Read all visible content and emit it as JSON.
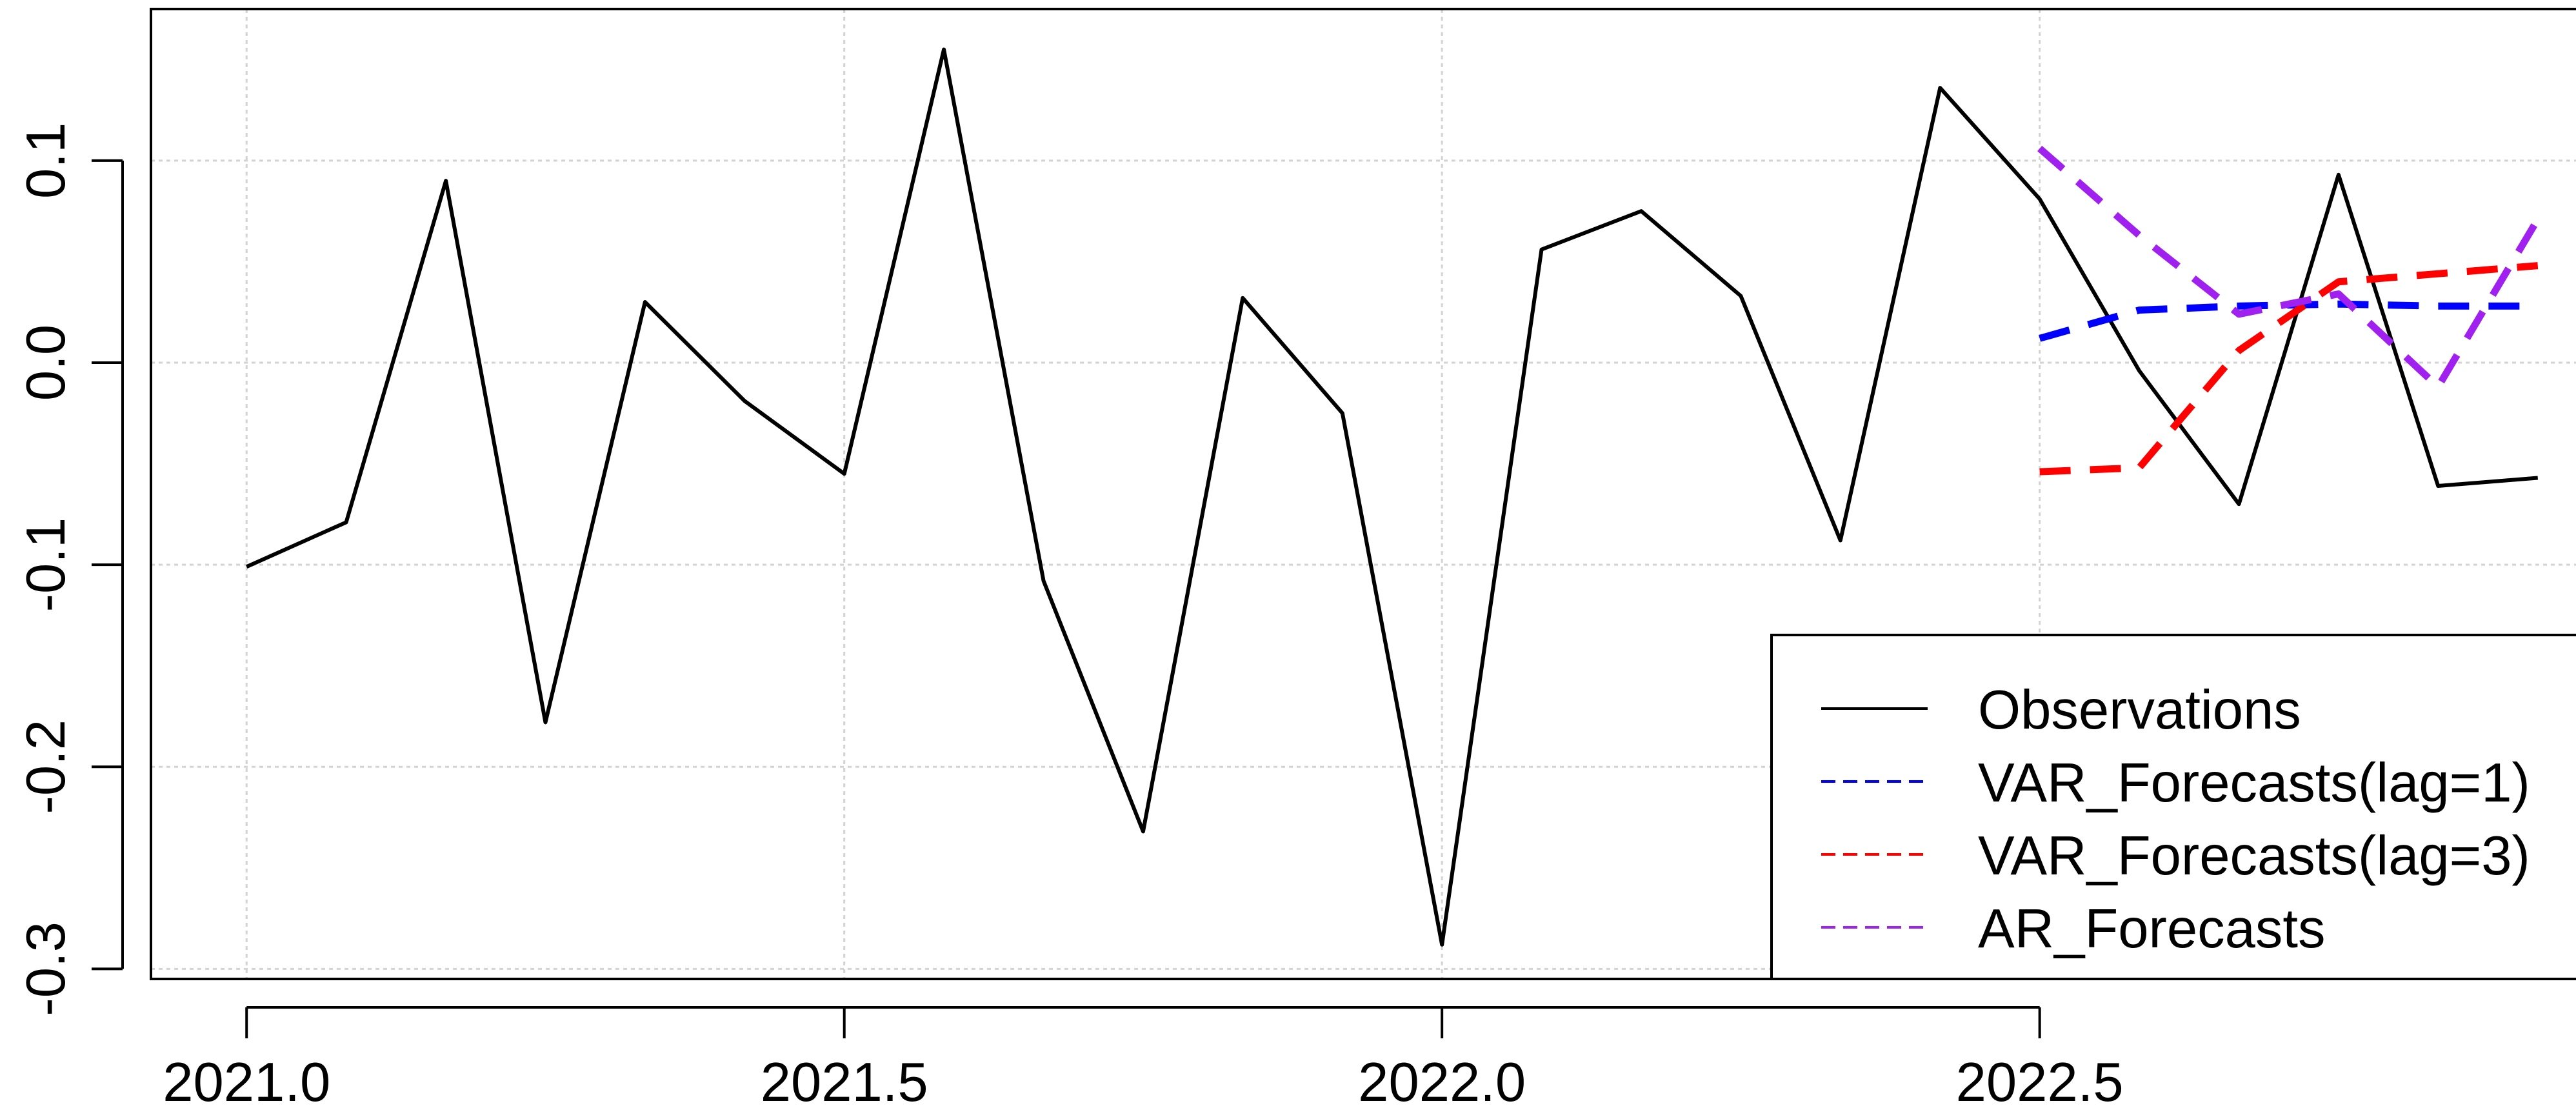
{
  "chart_data": {
    "type": "line",
    "title": "",
    "xlabel": "",
    "ylabel": "",
    "xlim": [
      2020.92,
      2022.96
    ],
    "ylim": [
      -0.305,
      0.175
    ],
    "x_ticks": [
      {
        "value": 2021.0,
        "label": "2021.0"
      },
      {
        "value": 2021.5,
        "label": "2021.5"
      },
      {
        "value": 2022.0,
        "label": "2022.0"
      },
      {
        "value": 2022.5,
        "label": "2022.5"
      }
    ],
    "y_ticks": [
      {
        "value": -0.3,
        "label": "-0.3"
      },
      {
        "value": -0.2,
        "label": "-0.2"
      },
      {
        "value": -0.1,
        "label": "-0.1"
      },
      {
        "value": 0.0,
        "label": "0.0"
      },
      {
        "value": 0.1,
        "label": "0.1"
      }
    ],
    "grid": true,
    "legend_position": "bottom-right",
    "series": [
      {
        "name": "Observations",
        "color": "#000000",
        "dash": "solid",
        "x": [
          2021.0,
          2021.0833,
          2021.1667,
          2021.25,
          2021.3333,
          2021.4167,
          2021.5,
          2021.5833,
          2021.6667,
          2021.75,
          2021.8333,
          2021.9167,
          2022.0,
          2022.0833,
          2022.1667,
          2022.25,
          2022.3333,
          2022.4167,
          2022.5,
          2022.5833,
          2022.6667,
          2022.75,
          2022.8333,
          2022.9167
        ],
        "y": [
          -0.101,
          -0.079,
          0.09,
          -0.178,
          0.03,
          -0.019,
          -0.055,
          0.155,
          -0.108,
          -0.232,
          0.032,
          -0.025,
          -0.288,
          0.056,
          0.075,
          0.033,
          -0.088,
          0.136,
          0.081,
          -0.004,
          -0.07,
          0.093,
          -0.061,
          -0.057
        ]
      },
      {
        "name": "VAR_Forecasts(lag=1)",
        "color": "#0000ff",
        "dash": "dashed",
        "x": [
          2022.5,
          2022.5833,
          2022.6667,
          2022.75,
          2022.8333,
          2022.9167
        ],
        "y": [
          0.012,
          0.026,
          0.028,
          0.029,
          0.028,
          0.028
        ]
      },
      {
        "name": "VAR_Forecasts(lag=3)",
        "color": "#ff0000",
        "dash": "dashed",
        "x": [
          2022.5,
          2022.5833,
          2022.6667,
          2022.75,
          2022.8333,
          2022.9167
        ],
        "y": [
          -0.054,
          -0.052,
          0.006,
          0.04,
          0.044,
          0.048
        ]
      },
      {
        "name": "AR_Forecasts",
        "color": "#a020f0",
        "dash": "dashed",
        "x": [
          2022.5,
          2022.5833,
          2022.6667,
          2022.75,
          2022.8333,
          2022.9167
        ],
        "y": [
          0.106,
          0.063,
          0.024,
          0.034,
          -0.012,
          0.071
        ]
      }
    ]
  }
}
